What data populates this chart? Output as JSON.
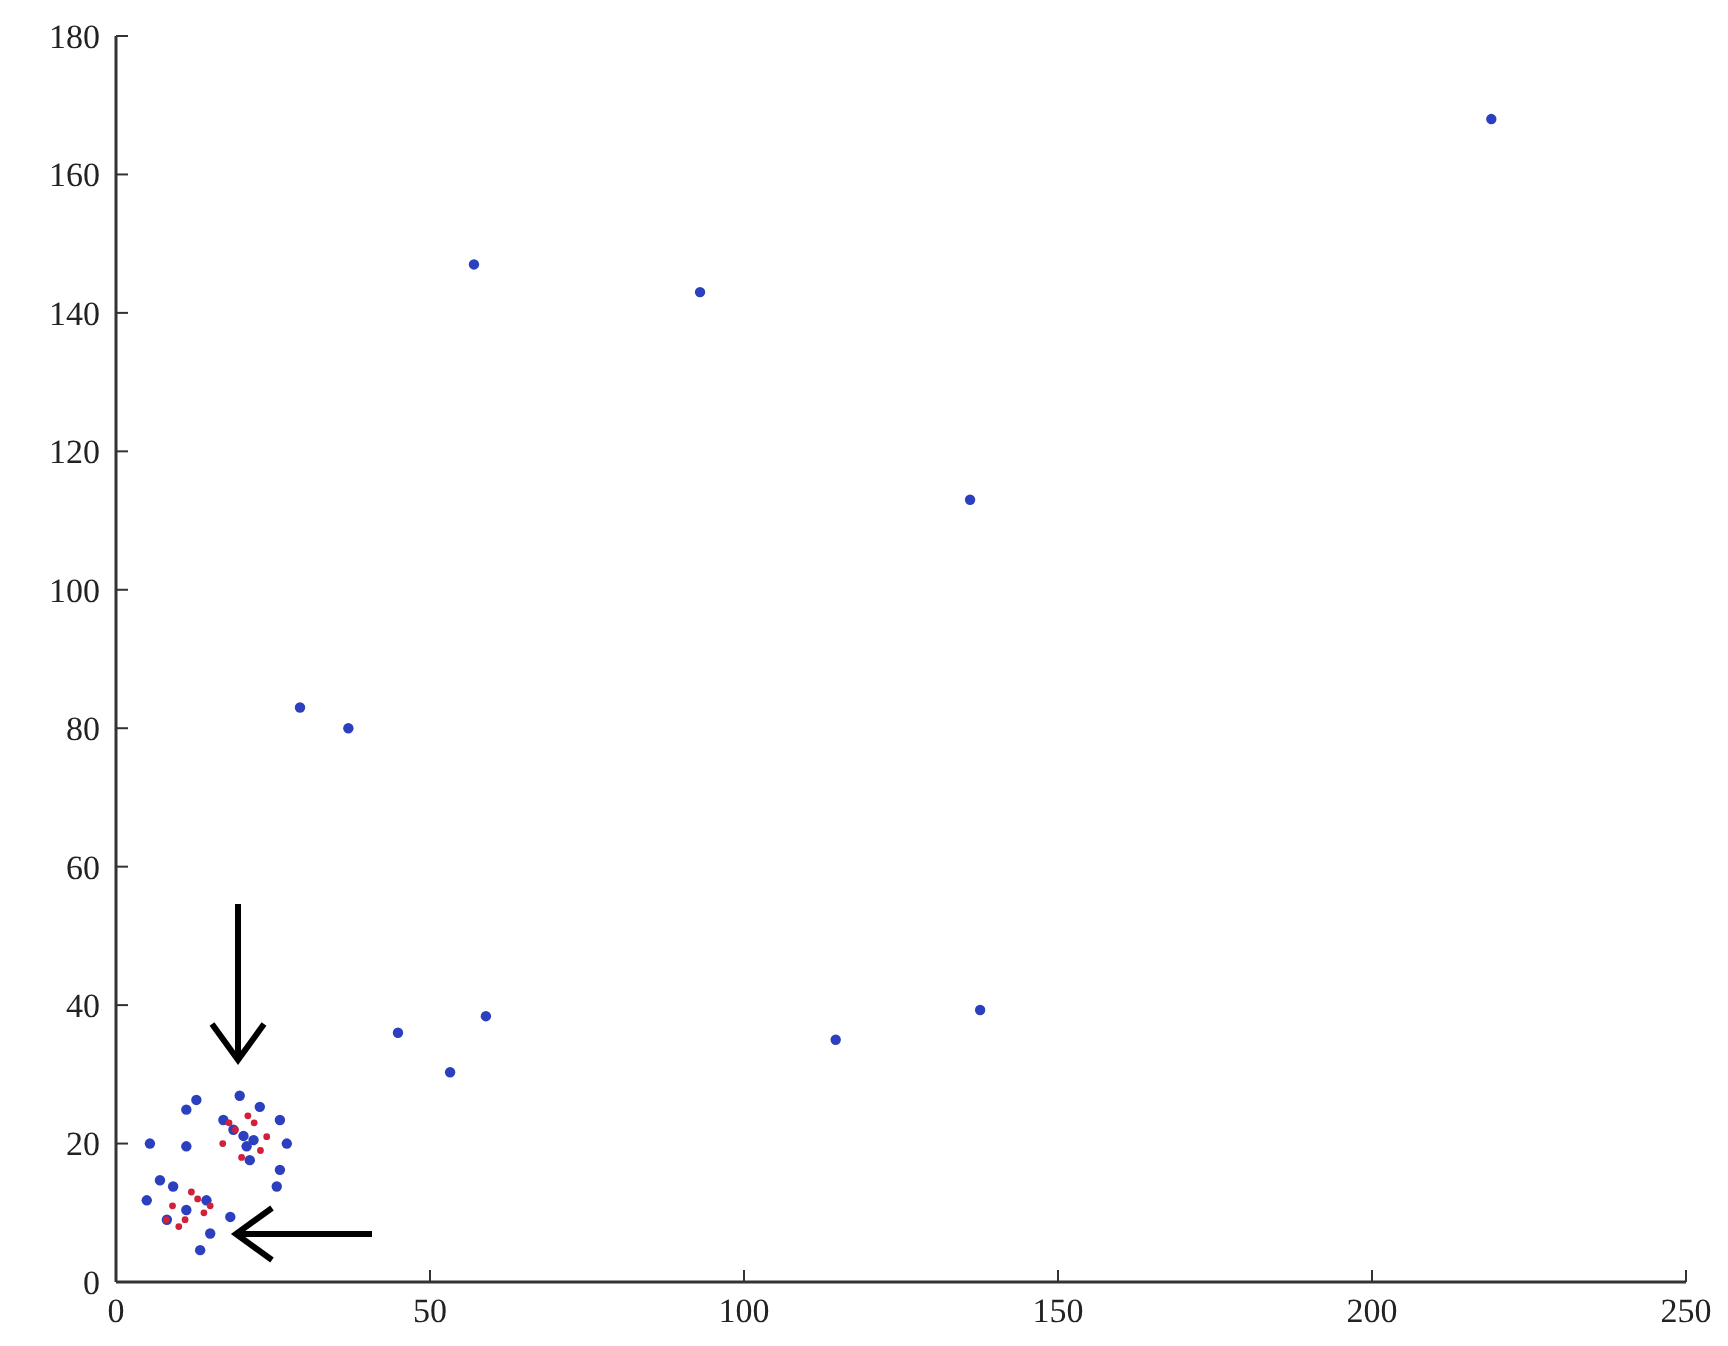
{
  "chart_data": {
    "type": "scatter",
    "xlim": [
      0,
      250
    ],
    "ylim": [
      0,
      180
    ],
    "xticks": [
      0,
      50,
      100,
      150,
      200,
      250
    ],
    "yticks": [
      0,
      20,
      40,
      60,
      80,
      100,
      120,
      140,
      160,
      180
    ],
    "grid": false,
    "marker": "circle",
    "series": [
      {
        "color": "#2b3fbf",
        "x": [
          57,
          93,
          219,
          136,
          29.3,
          37,
          44.9,
          58.9,
          53.2,
          114.6,
          137.6,
          12.8,
          11.2,
          5.4,
          11.2,
          19.7,
          26.1,
          27.2,
          26.1,
          25.6,
          7,
          4.9,
          13.4,
          18.2,
          15,
          8.1,
          22.9,
          17.1,
          21.3,
          9.1,
          14.4,
          11.2,
          18.7,
          21.9,
          20.8,
          20.3
        ],
        "values": [
          147,
          143,
          168,
          113,
          83,
          80,
          36,
          38.4,
          30.3,
          35,
          39.3,
          26.3,
          24.9,
          20,
          19.6,
          26.9,
          23.4,
          20,
          16.2,
          13.8,
          14.7,
          11.8,
          4.6,
          9.4,
          7,
          9,
          25.3,
          23.4,
          17.6,
          13.8,
          11.8,
          10.4,
          22,
          20.5,
          19.6,
          21.1
        ]
      },
      {
        "color": "#d0203a",
        "x": [
          18,
          22,
          17,
          23,
          20,
          21,
          24,
          19,
          9,
          13,
          10,
          14,
          8,
          12,
          15,
          11
        ],
        "values": [
          23,
          23,
          20,
          19,
          18,
          24,
          21,
          22,
          11,
          12,
          8,
          10,
          9,
          13,
          11,
          9
        ]
      }
    ]
  }
}
